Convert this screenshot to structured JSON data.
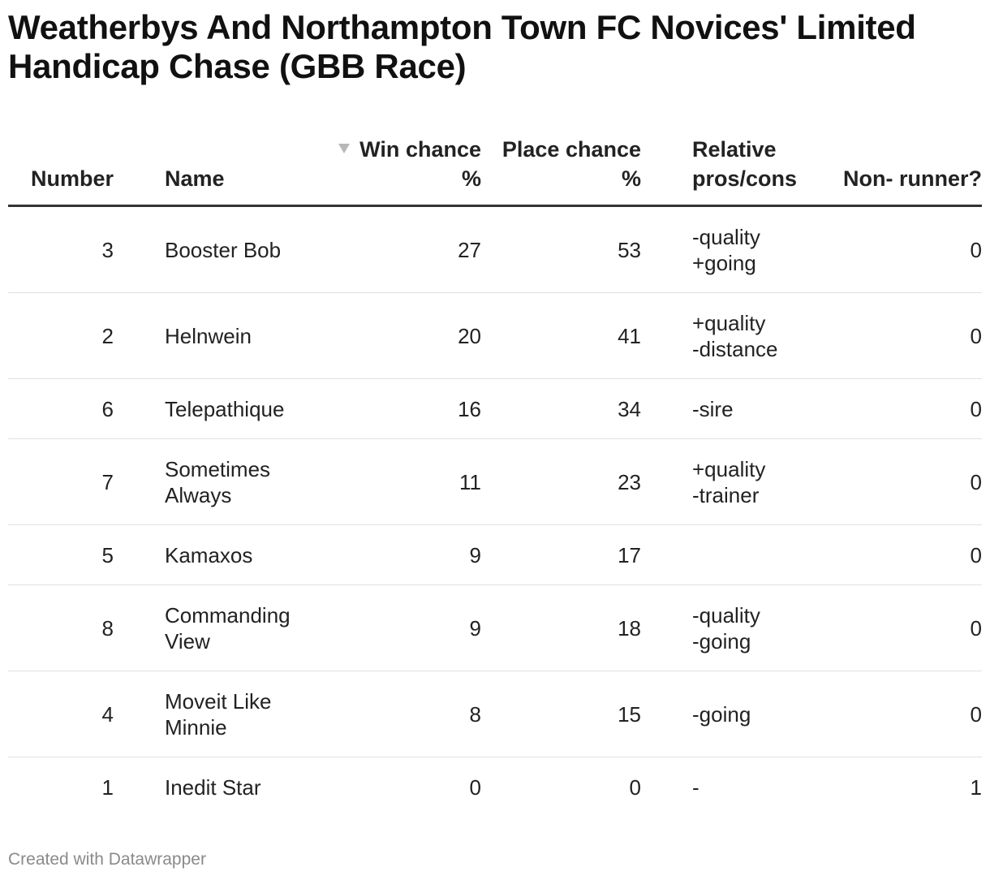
{
  "chart_data": {
    "type": "table",
    "title": "Weatherbys And Northampton Town FC Novices' Limited Handicap Chase (GBB Race)",
    "columns": [
      {
        "key": "number",
        "label": [
          "Number"
        ],
        "align": "right"
      },
      {
        "key": "name",
        "label": [
          "Name"
        ],
        "align": "left"
      },
      {
        "key": "win",
        "label": [
          "Win",
          "chance %"
        ],
        "align": "right",
        "sorted": "descending"
      },
      {
        "key": "place",
        "label": [
          "Place",
          "chance %"
        ],
        "align": "right"
      },
      {
        "key": "rel",
        "label": [
          "Relative",
          "pros/cons"
        ],
        "align": "left"
      },
      {
        "key": "nr",
        "label": [
          "Non-",
          "runner?"
        ],
        "align": "right"
      }
    ],
    "rows": [
      {
        "number": 3,
        "name": [
          "Booster Bob"
        ],
        "win": 27,
        "place": 53,
        "rel": [
          "-quality",
          "+going"
        ],
        "nr": 0
      },
      {
        "number": 2,
        "name": [
          "Helnwein"
        ],
        "win": 20,
        "place": 41,
        "rel": [
          "+quality",
          "-distance"
        ],
        "nr": 0
      },
      {
        "number": 6,
        "name": [
          "Telepathique"
        ],
        "win": 16,
        "place": 34,
        "rel": [
          "-sire"
        ],
        "nr": 0
      },
      {
        "number": 7,
        "name": [
          "Sometimes",
          "Always"
        ],
        "win": 11,
        "place": 23,
        "rel": [
          "+quality",
          "-trainer"
        ],
        "nr": 0
      },
      {
        "number": 5,
        "name": [
          "Kamaxos"
        ],
        "win": 9,
        "place": 17,
        "rel": [],
        "nr": 0
      },
      {
        "number": 8,
        "name": [
          "Commanding",
          "View"
        ],
        "win": 9,
        "place": 18,
        "rel": [
          "-quality",
          "-going"
        ],
        "nr": 0
      },
      {
        "number": 4,
        "name": [
          "Moveit Like",
          "Minnie"
        ],
        "win": 8,
        "place": 15,
        "rel": [
          "-going"
        ],
        "nr": 0
      },
      {
        "number": 1,
        "name": [
          "Inedit Star"
        ],
        "win": 0,
        "place": 0,
        "rel": [
          "-"
        ],
        "nr": 1
      }
    ]
  },
  "footer": "Created with Datawrapper",
  "colors": {
    "text": "#222222",
    "header_rule": "#333333",
    "row_rule": "#e0e0e0",
    "sort_arrow": "#b8b8b8",
    "footer_text": "#8a8a8a"
  },
  "icons": {
    "sort_indicator": "sort-descending-icon"
  }
}
